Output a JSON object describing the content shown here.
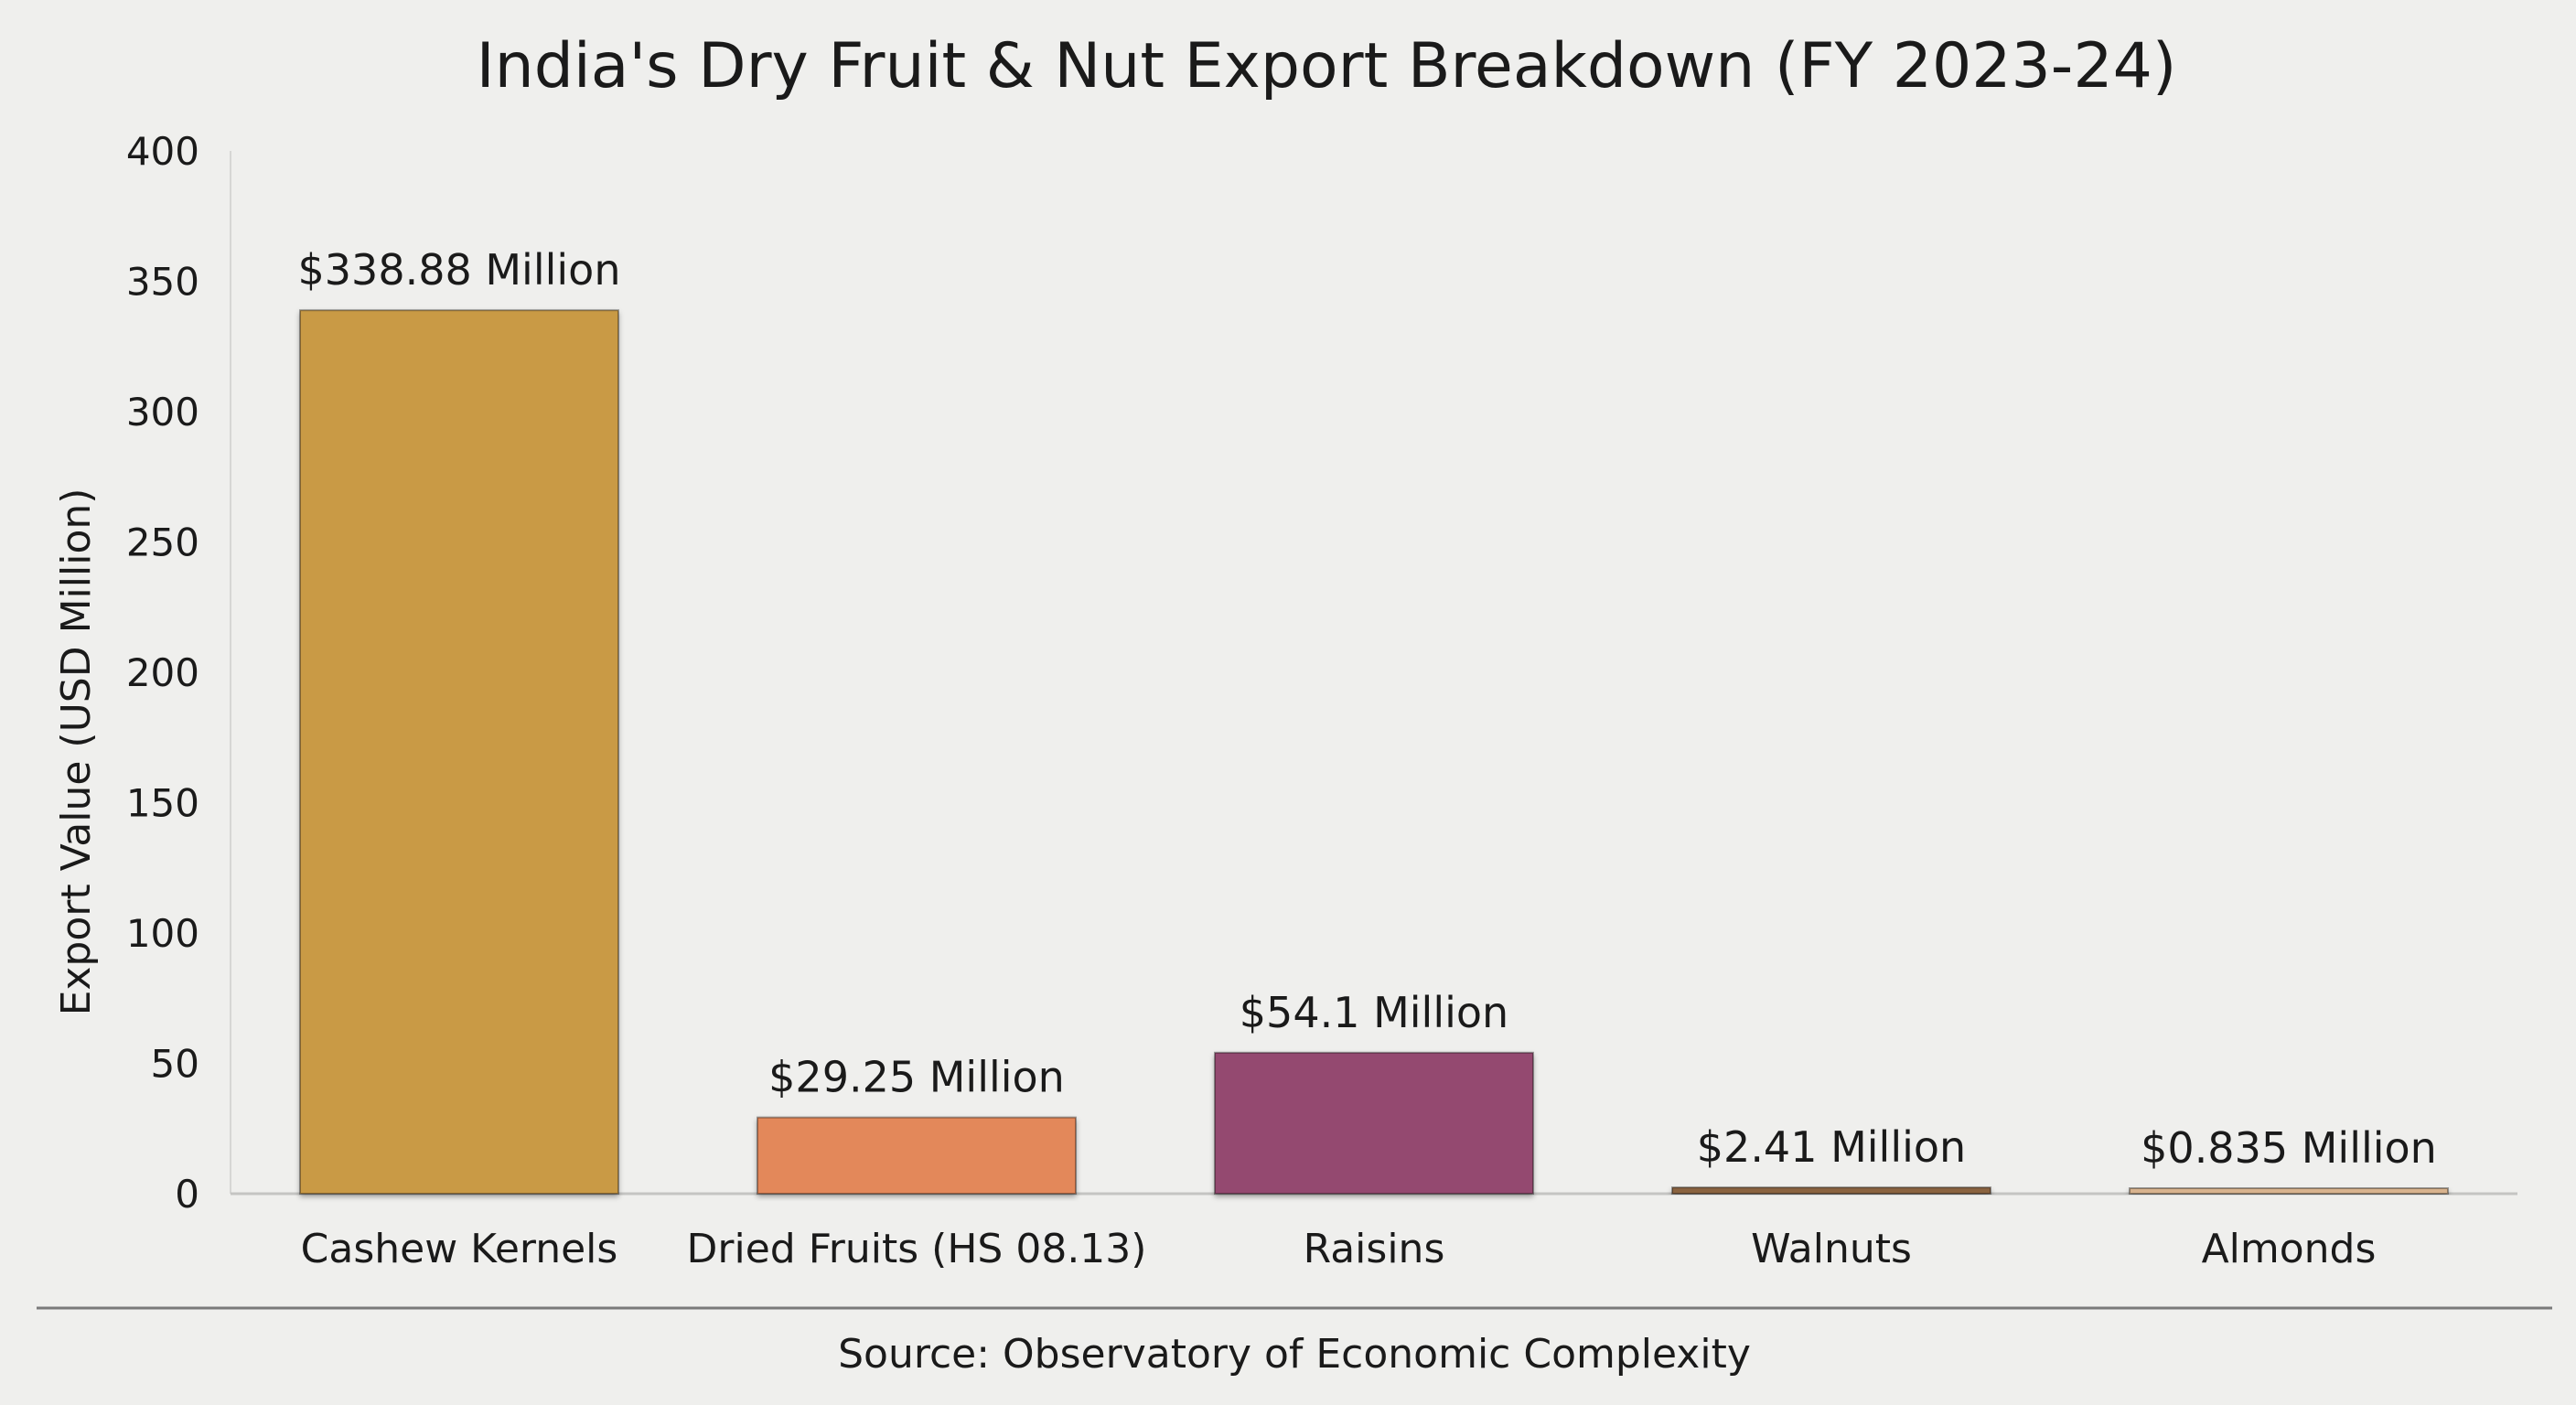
{
  "chart_data": {
    "type": "bar",
    "title": "India's Dry Fruit & Nut Export Breakdown (FY 2023-24)",
    "xlabel": "",
    "ylabel": "Export Value (USD Million)",
    "ylim": [
      0,
      400
    ],
    "yticks": [
      "0",
      "50",
      "100",
      "150",
      "200",
      "250",
      "300",
      "350",
      "400"
    ],
    "grid": false,
    "categories": [
      "Cashew Kernels",
      "Dried Fruits (HS 08.13)",
      "Raisins",
      "Walnuts",
      "Almonds"
    ],
    "values": [
      338.88,
      29.25,
      54.1,
      2.41,
      0.835
    ],
    "data_labels": [
      "$338.88 Million",
      "$29.25 Million",
      "$54.1 Million",
      "$2.41 Million",
      "$0.835 Million"
    ],
    "colors": [
      "#c99a45",
      "#e3885a",
      "#944a70",
      "#8a6340",
      "#d8b38e"
    ],
    "source": "Source: Observatory of Economic Complexity"
  }
}
